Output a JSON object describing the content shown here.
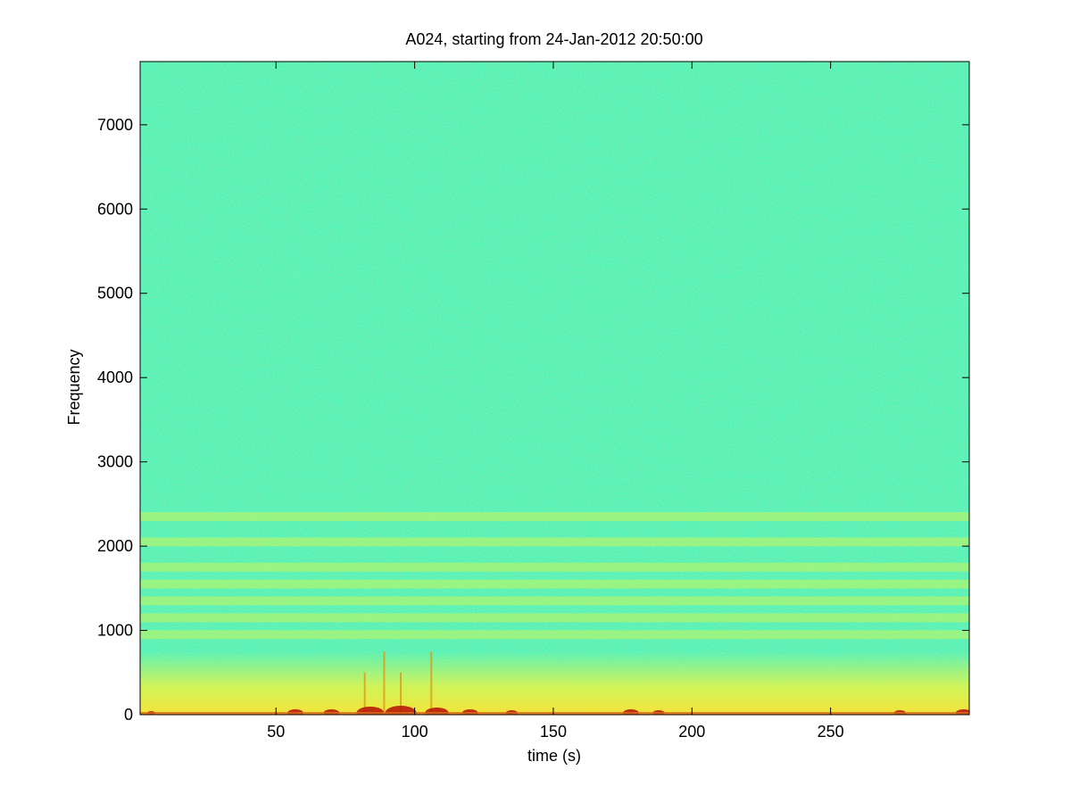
{
  "chart_data": {
    "type": "heatmap",
    "title": "A024, starting from 24-Jan-2012 20:50:00",
    "xlabel": "time (s)",
    "ylabel": "Frequency",
    "xlim": [
      1,
      300
    ],
    "ylim": [
      0,
      7750
    ],
    "xticks": [
      50,
      100,
      150,
      200,
      250
    ],
    "yticks": [
      0,
      1000,
      2000,
      3000,
      4000,
      5000,
      6000,
      7000
    ],
    "colormap": "jet",
    "colors": {
      "background_level": "#4ff2b6",
      "noise_low": "#35c9d8",
      "noise_high": "#8df07a",
      "band_level": "#c8f55a",
      "low_freq_level": "#f4f43a",
      "peak_level": "#b81a0a",
      "axis": "#000000"
    },
    "description_levels": {
      "low_frequency_band_hz": [
        0,
        400
      ],
      "harmonic_band_frequencies_hz": [
        950,
        1150,
        1350,
        1550,
        1750,
        2050,
        2350
      ],
      "transient_events_s": [
        82,
        89,
        95,
        106
      ]
    },
    "grid": false
  }
}
